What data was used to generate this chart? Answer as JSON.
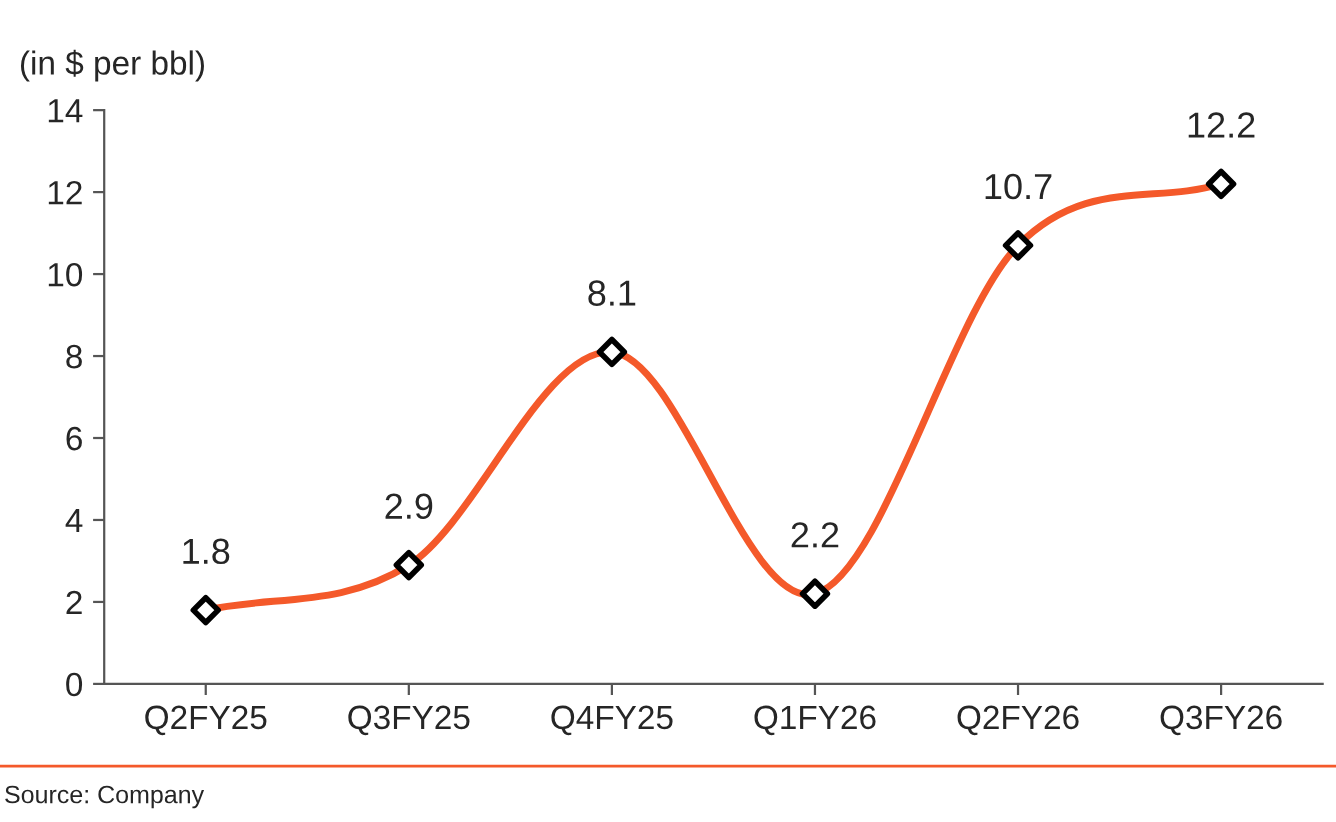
{
  "chart_data": {
    "type": "line",
    "ylabel": "(in $ per bbl)",
    "categories": [
      "Q2FY25",
      "Q3FY25",
      "Q4FY25",
      "Q1FY26",
      "Q2FY26",
      "Q3FY26"
    ],
    "series": [
      {
        "color": "#f4592a",
        "values": [
          1.8,
          2.9,
          8.1,
          2.2,
          10.7,
          12.2
        ]
      }
    ],
    "ylim": [
      0,
      14
    ],
    "yticks": [
      0,
      2,
      4,
      6,
      8,
      10,
      12,
      14
    ],
    "data_labels": true,
    "marker": "diamond",
    "line_style": "solid",
    "grid": false,
    "legend": false,
    "annotations": [
      "Source: Company"
    ]
  }
}
